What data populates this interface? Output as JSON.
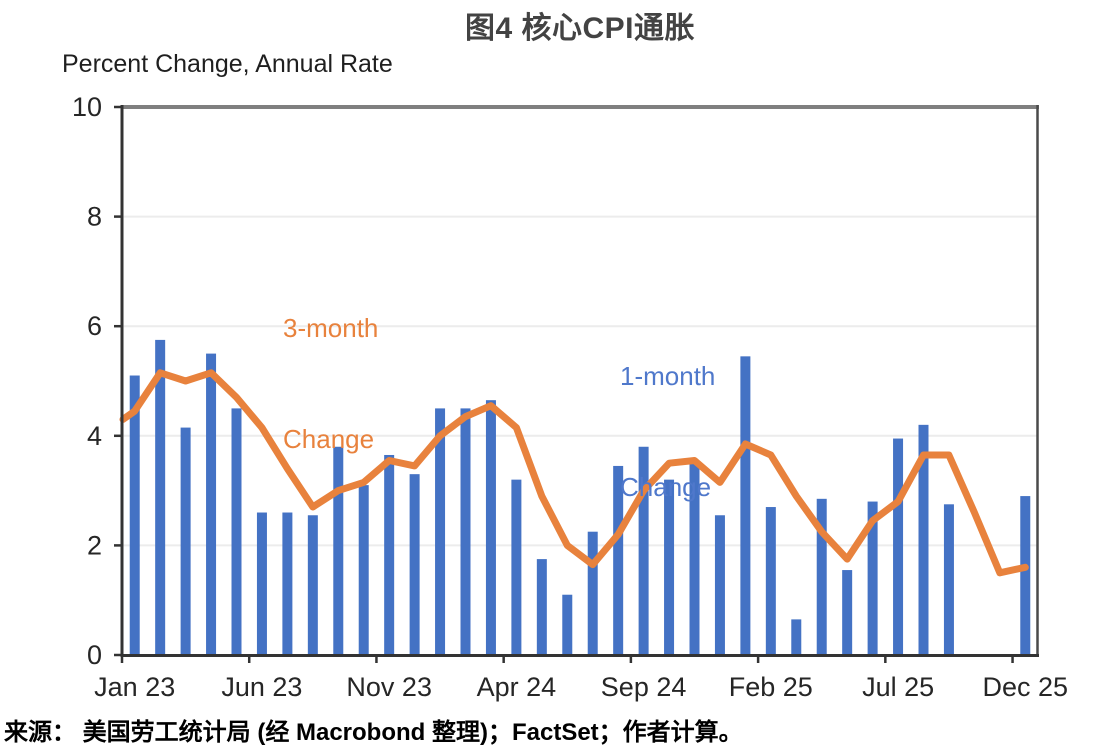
{
  "page": {
    "title": "图4  核心CPI通胀",
    "source": "来源： 美国劳工统计局 (经 Macrobond 整理)；FactSet；作者计算。"
  },
  "chart_data": {
    "type": "bar",
    "subtype": "bar-with-line-overlay",
    "title": "图4  核心CPI通胀",
    "ylabel": "Percent Change, Annual Rate",
    "ylim": [
      0,
      10
    ],
    "yticks": [
      0,
      2,
      4,
      6,
      8,
      10
    ],
    "grid_yticks": [
      2,
      4,
      6,
      8
    ],
    "legend_position": "inside-plot-text-labels",
    "x_tick_labels": [
      "Jan 23",
      "Jun 23",
      "Nov 23",
      "Apr 24",
      "Sep 24",
      "Feb 25",
      "Jul 25",
      "Dec 25"
    ],
    "x_tick_indices": [
      0,
      5,
      10,
      15,
      20,
      25,
      30,
      35
    ],
    "categories": [
      "Jan 23",
      "Feb 23",
      "Mar 23",
      "Apr 23",
      "May 23",
      "Jun 23",
      "Jul 23",
      "Aug 23",
      "Sep 23",
      "Oct 23",
      "Nov 23",
      "Dec 23",
      "Jan 24",
      "Feb 24",
      "Mar 24",
      "Apr 24",
      "May 24",
      "Jun 24",
      "Jul 24",
      "Aug 24",
      "Sep 24",
      "Oct 24",
      "Nov 24",
      "Dec 24",
      "Jan 25",
      "Feb 25",
      "Mar 25",
      "Apr 25",
      "May 25",
      "Jun 25",
      "Jul 25",
      "Aug 25",
      "Sep 25",
      "Oct 25",
      "Nov 25",
      "Dec 25"
    ],
    "series": [
      {
        "name": "1-month Change",
        "label_lines": [
          "1-month",
          "Change"
        ],
        "type": "bar",
        "color": "#4472C4",
        "label_color": "#4F78CB",
        "values": [
          5.1,
          5.75,
          4.15,
          5.5,
          4.5,
          2.6,
          2.6,
          2.55,
          3.8,
          3.1,
          3.65,
          3.3,
          4.5,
          4.5,
          4.65,
          3.2,
          1.75,
          1.1,
          2.25,
          3.45,
          3.8,
          3.2,
          3.5,
          2.55,
          5.45,
          2.7,
          0.65,
          2.85,
          1.55,
          2.8,
          3.95,
          4.2,
          2.75,
          null,
          null,
          2.9
        ]
      },
      {
        "name": "3-month Change",
        "label_lines": [
          "3-month",
          "Change"
        ],
        "type": "line",
        "color": "#E8823D",
        "label_color": "#E8823D",
        "edge_start_value": 4.3,
        "values": [
          4.45,
          5.15,
          5.0,
          5.15,
          4.7,
          4.15,
          3.4,
          2.7,
          3.0,
          3.15,
          3.55,
          3.45,
          4.0,
          4.35,
          4.55,
          4.15,
          2.9,
          2.0,
          1.65,
          2.2,
          3.0,
          3.5,
          3.55,
          3.15,
          3.85,
          3.65,
          2.9,
          2.25,
          1.75,
          2.45,
          2.8,
          3.65,
          3.65,
          2.6,
          1.5,
          1.6
        ]
      }
    ],
    "style_colors": {
      "frame_top": "#7F7F7F",
      "frame_right": "#4A4A4A",
      "axis": "#333333",
      "gridline": "#ECECEC",
      "tick_label": "#262626"
    }
  }
}
